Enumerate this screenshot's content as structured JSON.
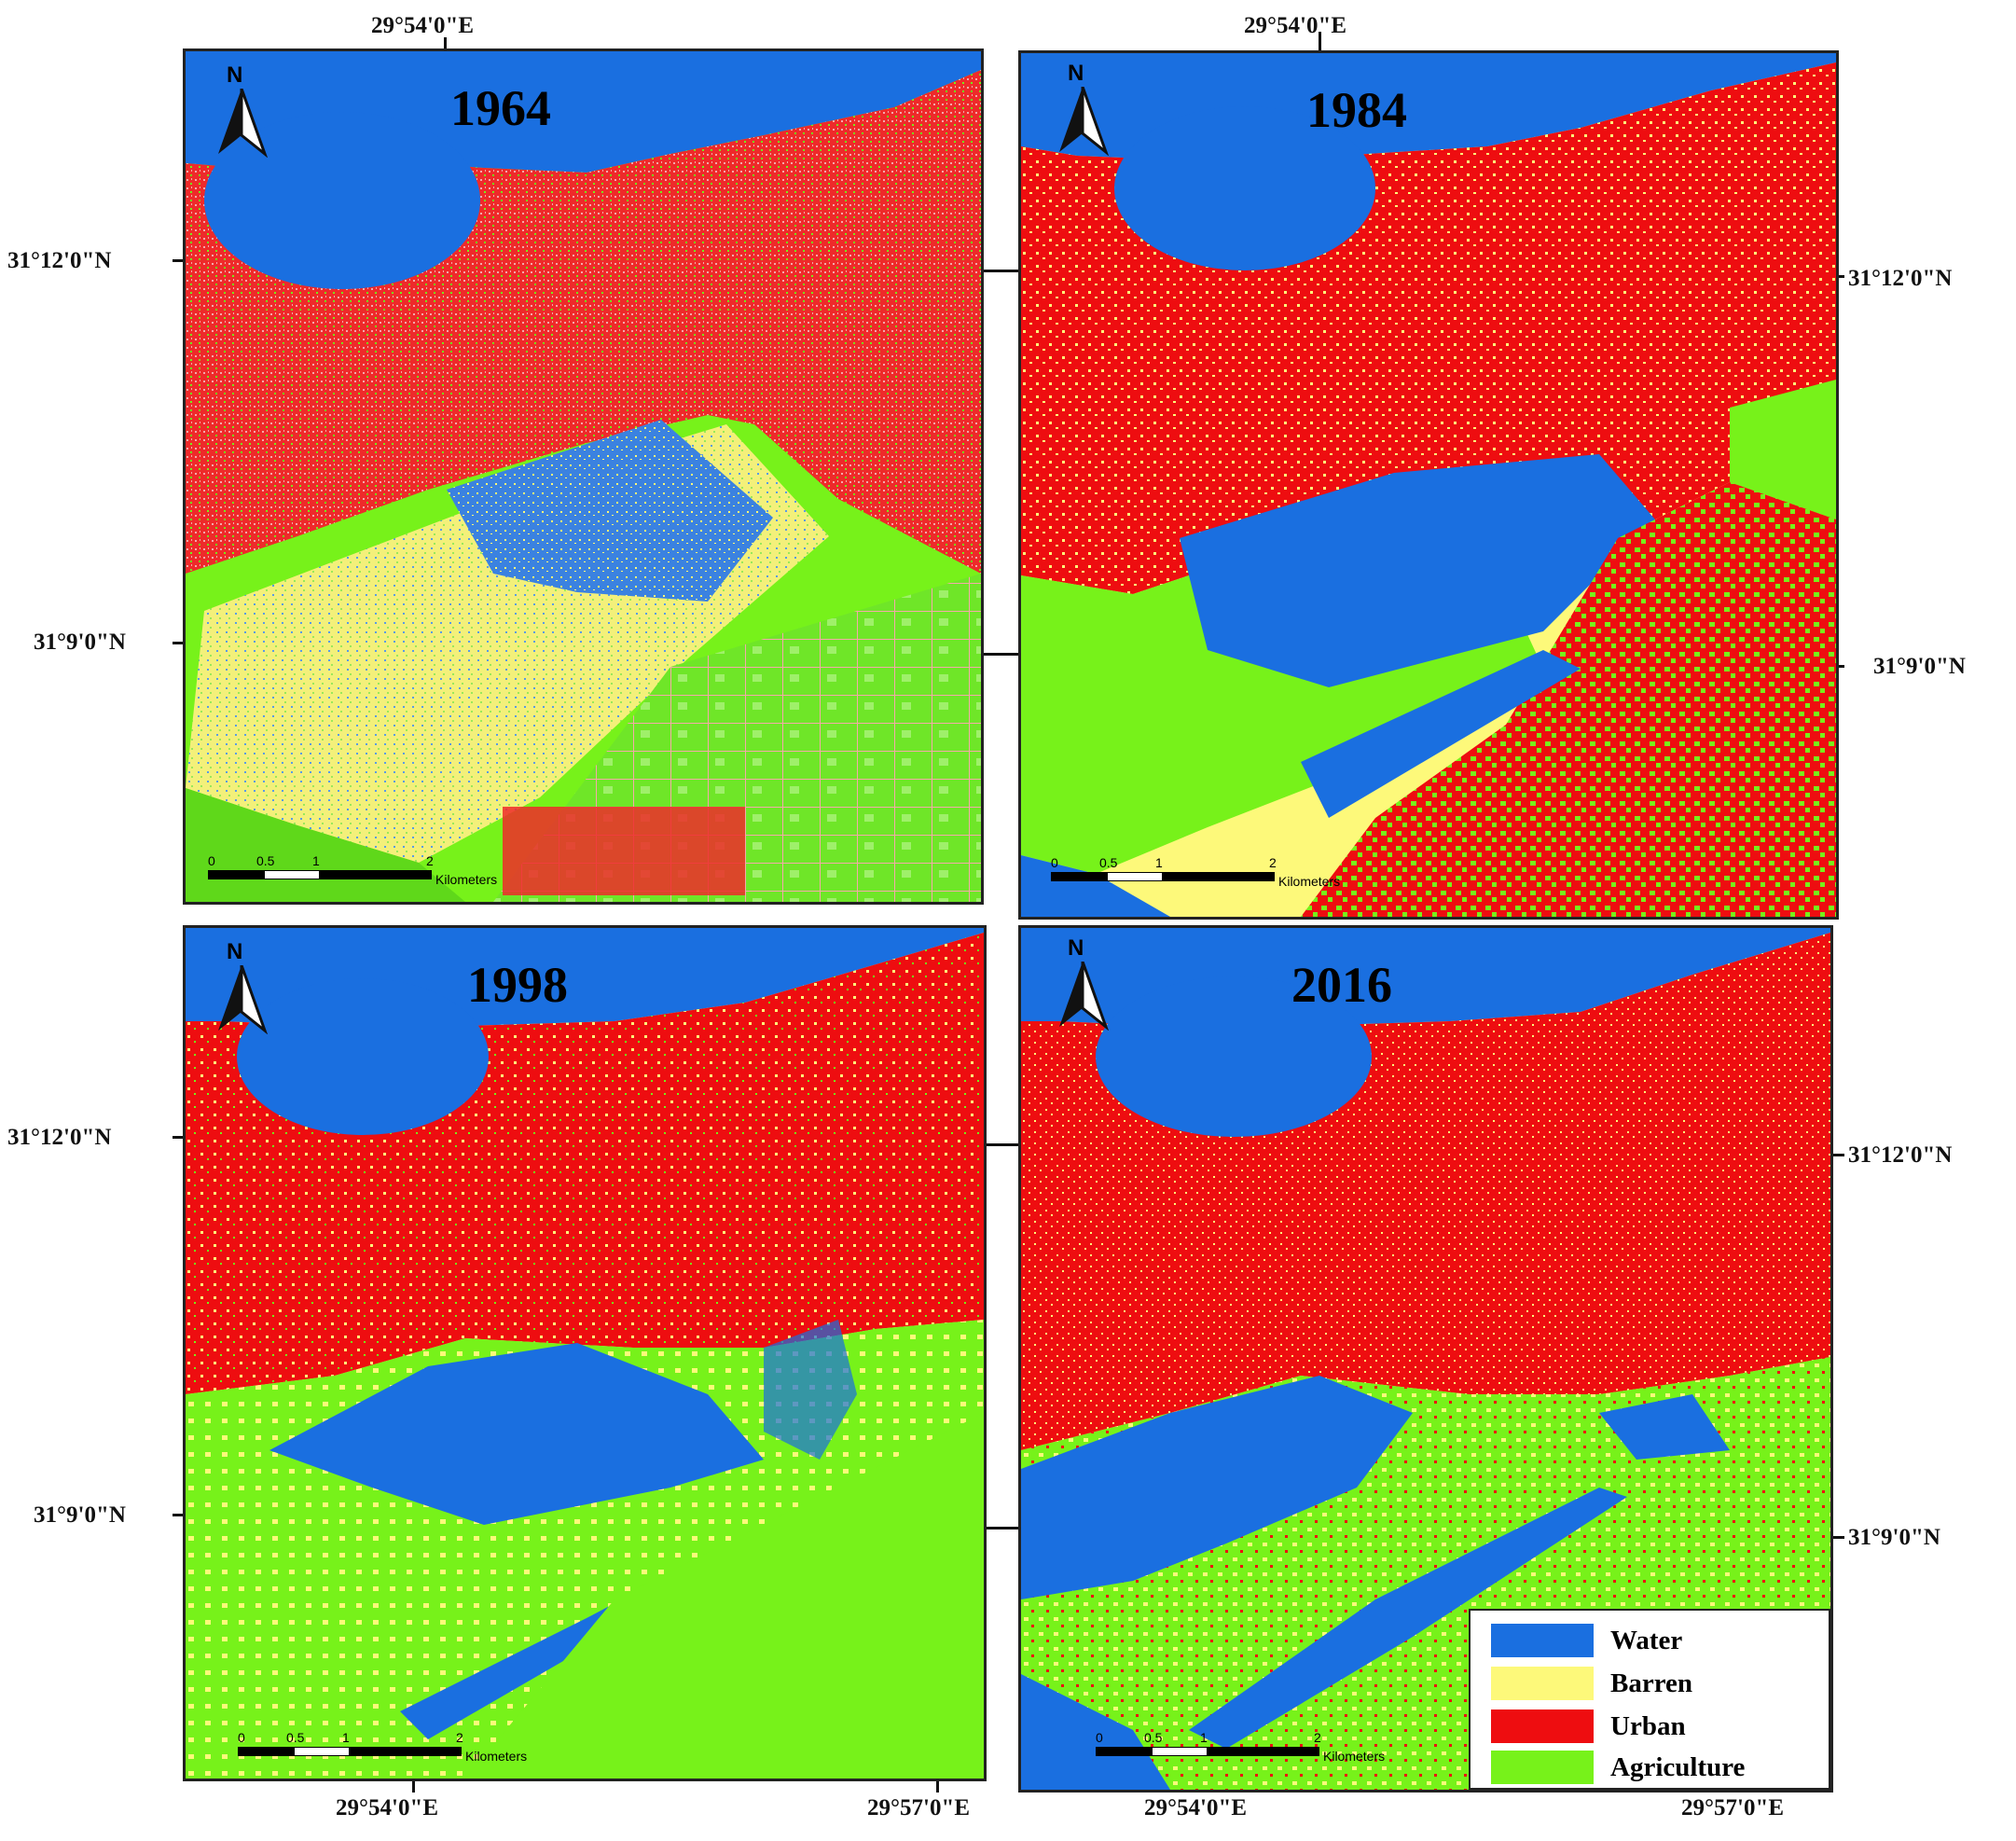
{
  "colors": {
    "water": "#1a6fe0",
    "barren": "#fdf97a",
    "urban": "#ee0d10",
    "agriculture": "#77f21a",
    "pink": "#f4a9a9"
  },
  "panels": [
    {
      "year": "1964",
      "north": "N",
      "scale_labels": [
        "0",
        "0.5",
        "1",
        "2"
      ],
      "scale_unit": "Kilometers"
    },
    {
      "year": "1984",
      "north": "N",
      "scale_labels": [
        "0",
        "0.5",
        "1",
        "2"
      ],
      "scale_unit": "Kilometers"
    },
    {
      "year": "1998",
      "north": "N",
      "scale_labels": [
        "0",
        "0.5",
        "1",
        "2"
      ],
      "scale_unit": "Kilometers"
    },
    {
      "year": "2016",
      "north": "N",
      "scale_labels": [
        "0",
        "0.5",
        "1",
        "2"
      ],
      "scale_unit": "Kilometers"
    }
  ],
  "coords": {
    "lon_top_left": "29°54'0\"E",
    "lon_top_right": "29°54'0\"E",
    "lat_1_12": "31°12'0\"N",
    "lat_1_9": "31°9'0\"N",
    "lat_2_12": "31°12'0\"N",
    "lat_2_9": "31°9'0\"N",
    "lat_3_12": "31°12'0\"N",
    "lat_3_9": "31°9'0\"N",
    "lat_4_12": "31°12'0\"N",
    "lat_4_9": "31°9'0\"N",
    "lon_bl_1": "29°54'0\"E",
    "lon_bl_2": "29°57'0\"E",
    "lon_br_1": "29°54'0\"E",
    "lon_br_2": "29°57'0\"E"
  },
  "legend": [
    {
      "label": "Water",
      "color": "#1a6fe0"
    },
    {
      "label": "Barren",
      "color": "#fdf97a"
    },
    {
      "label": "Urban",
      "color": "#ee0d10"
    },
    {
      "label": "Agriculture",
      "color": "#77f21a"
    }
  ]
}
